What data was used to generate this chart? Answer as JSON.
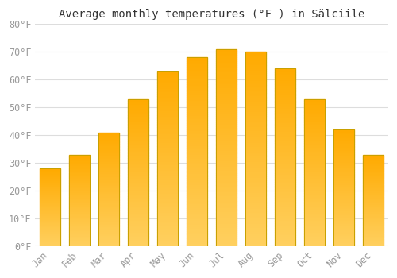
{
  "title": "Average monthly temperatures (°F ) in Sălciile",
  "months": [
    "Jan",
    "Feb",
    "Mar",
    "Apr",
    "May",
    "Jun",
    "Jul",
    "Aug",
    "Sep",
    "Oct",
    "Nov",
    "Dec"
  ],
  "values": [
    28,
    33,
    41,
    53,
    63,
    68,
    71,
    70,
    64,
    53,
    42,
    33
  ],
  "bar_color_main": "#FFAA00",
  "bar_color_light": "#FFD060",
  "bar_edge_color": "#C8A000",
  "background_color": "#FFFFFF",
  "ylim": [
    0,
    80
  ],
  "yticks": [
    0,
    10,
    20,
    30,
    40,
    50,
    60,
    70,
    80
  ],
  "ytick_labels": [
    "0°F",
    "10°F",
    "20°F",
    "30°F",
    "40°F",
    "50°F",
    "60°F",
    "70°F",
    "80°F"
  ],
  "grid_color": "#DDDDDD",
  "tick_color": "#999999",
  "title_fontsize": 10,
  "tick_fontsize": 8.5,
  "bar_width": 0.7
}
